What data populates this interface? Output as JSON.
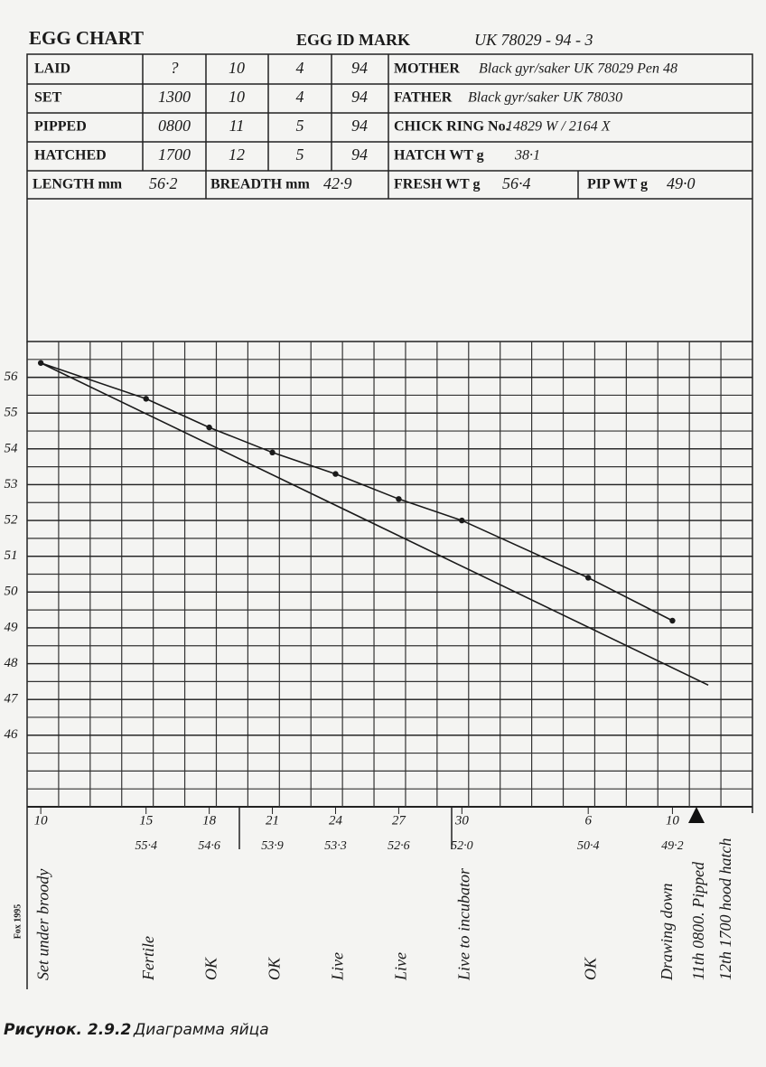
{
  "header": {
    "title": "EGG CHART",
    "id_label": "EGG ID MARK",
    "id_value": "UK 78029 - 94 - 3"
  },
  "table": {
    "rows": [
      [
        "LAID",
        "?",
        "10",
        "4",
        "94"
      ],
      [
        "SET",
        "1300",
        "10",
        "4",
        "94"
      ],
      [
        "PIPPED",
        "0800",
        "11",
        "5",
        "94"
      ],
      [
        "HATCHED",
        "1700",
        "12",
        "5",
        "94"
      ]
    ],
    "parents": [
      [
        "MOTHER",
        "Black gyr/saker UK 78029  Pen 48"
      ],
      [
        "FATHER",
        "Black gyr/saker UK 78030"
      ],
      [
        "CHICK RING No.",
        "14829 W / 2164 X"
      ],
      [
        "HATCH WT g",
        "38·1"
      ]
    ],
    "measures": [
      [
        "LENGTH mm",
        "56·2"
      ],
      [
        "BREADTH mm",
        "42·9"
      ],
      [
        "FRESH WT g",
        "56·4"
      ],
      [
        "PIP WT g",
        "49·0"
      ]
    ]
  },
  "chart_data": {
    "type": "line",
    "x": [
      0,
      5,
      8,
      11,
      14,
      17,
      20,
      26,
      30
    ],
    "series": [
      {
        "color": "#1a1a1a",
        "values": [
          56.4,
          55.4,
          54.6,
          53.9,
          53.3,
          52.6,
          52.0,
          50.4,
          49.2
        ],
        "value_labels": [
          null,
          "55·4",
          "54·6",
          "53·9",
          "53·3",
          "52·6",
          "52·0",
          "50·4",
          "49·2"
        ]
      },
      {
        "color": "#1a1a1a",
        "x": [
          0,
          31.7
        ],
        "values": [
          56.4,
          47.4
        ]
      }
    ],
    "xlim": [
      -0.65,
      33.8
    ],
    "xticks": [
      {
        "value": 0,
        "label": "10"
      },
      {
        "value": 5,
        "label": "15"
      },
      {
        "value": 8,
        "label": "18"
      },
      {
        "value": 11,
        "label": "21"
      },
      {
        "value": 14,
        "label": "24"
      },
      {
        "value": 17,
        "label": "27"
      },
      {
        "value": 20,
        "label": "30"
      },
      {
        "value": 26,
        "label": "6"
      },
      {
        "value": 30,
        "label": "10"
      }
    ],
    "ylim": [
      44,
      57
    ],
    "yticks": [
      46,
      47,
      48,
      49,
      50,
      51,
      52,
      53,
      54,
      55,
      56
    ],
    "annotations": [
      "Set under broody",
      "Fertile",
      "OK",
      "OK",
      "Live",
      "Live",
      "Live to incubator",
      "OK",
      "Drawing down",
      "11th 0800. Pipped",
      "12th 1700 hood hatch"
    ]
  },
  "footer": {
    "credit": "Fox 1995",
    "caption_label": "Рисунок. 2.9.2",
    "caption_text": "Диаграмма яйца"
  }
}
